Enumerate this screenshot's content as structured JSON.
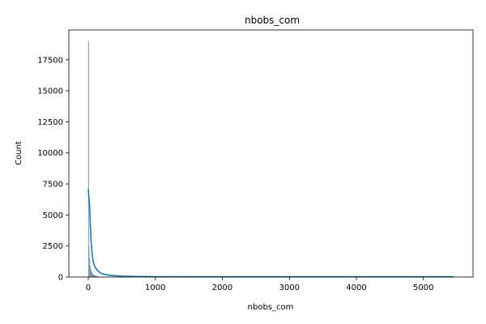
{
  "chart_data": {
    "type": "bar",
    "title": "nbobs_com",
    "xlabel": "nbobs_com",
    "ylabel": "Count",
    "xlim": [
      -290,
      5740
    ],
    "ylim": [
      0,
      19900
    ],
    "x_ticks": [
      0,
      1000,
      2000,
      3000,
      4000,
      5000
    ],
    "x_tick_labels": [
      "0",
      "1000",
      "2000",
      "3000",
      "4000",
      "5000"
    ],
    "y_ticks": [
      0,
      2500,
      5000,
      7500,
      10000,
      12500,
      15000,
      17500
    ],
    "y_tick_labels": [
      "0",
      "2500",
      "5000",
      "7500",
      "10000",
      "12500",
      "15000",
      "17500"
    ],
    "grid": false,
    "histogram": {
      "bin_width": 8,
      "bins": [
        {
          "x0": 0,
          "x1": 8,
          "count": 19000
        },
        {
          "x0": 8,
          "x1": 16,
          "count": 2500
        },
        {
          "x0": 16,
          "x1": 24,
          "count": 1500
        },
        {
          "x0": 24,
          "x1": 32,
          "count": 900
        },
        {
          "x0": 32,
          "x1": 40,
          "count": 650
        },
        {
          "x0": 40,
          "x1": 48,
          "count": 500
        },
        {
          "x0": 48,
          "x1": 56,
          "count": 380
        },
        {
          "x0": 56,
          "x1": 64,
          "count": 300
        },
        {
          "x0": 64,
          "x1": 72,
          "count": 240
        },
        {
          "x0": 72,
          "x1": 80,
          "count": 190
        },
        {
          "x0": 80,
          "x1": 88,
          "count": 160
        },
        {
          "x0": 88,
          "x1": 96,
          "count": 130
        },
        {
          "x0": 96,
          "x1": 104,
          "count": 110
        },
        {
          "x0": 104,
          "x1": 112,
          "count": 90
        },
        {
          "x0": 112,
          "x1": 120,
          "count": 75
        },
        {
          "x0": 120,
          "x1": 128,
          "count": 62
        },
        {
          "x0": 128,
          "x1": 136,
          "count": 52
        },
        {
          "x0": 136,
          "x1": 144,
          "count": 44
        },
        {
          "x0": 144,
          "x1": 152,
          "count": 38
        },
        {
          "x0": 152,
          "x1": 160,
          "count": 32
        }
      ]
    },
    "kde": {
      "x": [
        0,
        20,
        40,
        60,
        80,
        100,
        150,
        200,
        300,
        400,
        500,
        700,
        1000,
        1500,
        2000,
        3000,
        4000,
        5000,
        5450
      ],
      "y": [
        7100,
        5700,
        3000,
        1700,
        1100,
        800,
        450,
        270,
        150,
        100,
        70,
        45,
        30,
        25,
        22,
        20,
        20,
        20,
        20
      ]
    },
    "colors": {
      "bar_fill": "#8da8c4",
      "bar_edge": "#5f7f9f",
      "kde_line": "#1f77b4"
    }
  }
}
